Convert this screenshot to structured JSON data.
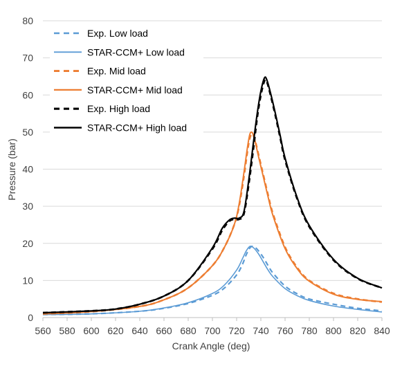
{
  "chart_data": {
    "type": "line",
    "title": "",
    "xlabel": "Crank Angle (deg)",
    "ylabel": "Pressure (bar)",
    "xlim": [
      560,
      840
    ],
    "ylim": [
      0,
      80
    ],
    "x_ticks": [
      "560",
      "580",
      "600",
      "620",
      "640",
      "660",
      "680",
      "700",
      "720",
      "740",
      "760",
      "780",
      "800",
      "820",
      "840"
    ],
    "y_ticks": [
      "0",
      "10",
      "20",
      "30",
      "40",
      "50",
      "60",
      "70",
      "80"
    ],
    "grid": "horizontal",
    "legend_position": "top-left",
    "series": [
      {
        "name": "Exp. Low load",
        "color": "#5b9bd5",
        "style": "dashed",
        "points": [
          [
            560,
            0.8
          ],
          [
            600,
            1.0
          ],
          [
            640,
            1.7
          ],
          [
            660,
            2.5
          ],
          [
            680,
            3.8
          ],
          [
            700,
            6.0
          ],
          [
            710,
            8.0
          ],
          [
            720,
            11.5
          ],
          [
            725,
            14.5
          ],
          [
            728,
            17.0
          ],
          [
            731,
            18.8
          ],
          [
            733,
            19.2
          ],
          [
            735,
            19.0
          ],
          [
            738,
            18.0
          ],
          [
            742,
            16.2
          ],
          [
            746,
            14.0
          ],
          [
            750,
            12.0
          ],
          [
            760,
            8.5
          ],
          [
            770,
            6.4
          ],
          [
            780,
            5.0
          ],
          [
            800,
            3.6
          ],
          [
            820,
            2.5
          ],
          [
            840,
            1.8
          ]
        ]
      },
      {
        "name": "STAR-CCM+ Low load",
        "color": "#5b9bd5",
        "style": "solid",
        "points": [
          [
            560,
            0.8
          ],
          [
            600,
            1.0
          ],
          [
            640,
            1.7
          ],
          [
            660,
            2.6
          ],
          [
            680,
            4.0
          ],
          [
            700,
            6.5
          ],
          [
            710,
            8.8
          ],
          [
            720,
            12.8
          ],
          [
            725,
            16.0
          ],
          [
            728,
            18.0
          ],
          [
            731,
            19.2
          ],
          [
            734,
            18.8
          ],
          [
            738,
            17.2
          ],
          [
            742,
            15.0
          ],
          [
            746,
            12.8
          ],
          [
            750,
            11.0
          ],
          [
            760,
            7.8
          ],
          [
            770,
            5.9
          ],
          [
            780,
            4.6
          ],
          [
            800,
            3.1
          ],
          [
            820,
            2.2
          ],
          [
            840,
            1.5
          ]
        ]
      },
      {
        "name": "Exp. Mid load",
        "color": "#ed7d31",
        "style": "dashed",
        "points": [
          [
            560,
            1.0
          ],
          [
            600,
            1.6
          ],
          [
            640,
            3.0
          ],
          [
            660,
            4.8
          ],
          [
            680,
            8.0
          ],
          [
            700,
            14.0
          ],
          [
            710,
            19.0
          ],
          [
            718,
            25.0
          ],
          [
            722,
            30.0
          ],
          [
            726,
            38.0
          ],
          [
            729,
            45.0
          ],
          [
            731,
            48.5
          ],
          [
            733,
            49.5
          ],
          [
            735,
            48.0
          ],
          [
            738,
            44.0
          ],
          [
            742,
            38.5
          ],
          [
            746,
            33.0
          ],
          [
            750,
            28.0
          ],
          [
            760,
            19.0
          ],
          [
            770,
            13.5
          ],
          [
            780,
            10.0
          ],
          [
            800,
            6.5
          ],
          [
            820,
            5.0
          ],
          [
            840,
            4.2
          ]
        ]
      },
      {
        "name": "STAR-CCM+ Mid load",
        "color": "#ed7d31",
        "style": "solid",
        "points": [
          [
            560,
            1.0
          ],
          [
            600,
            1.6
          ],
          [
            640,
            3.0
          ],
          [
            660,
            4.8
          ],
          [
            680,
            8.0
          ],
          [
            700,
            14.0
          ],
          [
            710,
            19.0
          ],
          [
            718,
            25.0
          ],
          [
            722,
            30.5
          ],
          [
            726,
            39.0
          ],
          [
            729,
            46.0
          ],
          [
            731,
            49.5
          ],
          [
            733,
            49.8
          ],
          [
            735,
            47.8
          ],
          [
            738,
            43.5
          ],
          [
            742,
            38.0
          ],
          [
            746,
            32.5
          ],
          [
            750,
            27.5
          ],
          [
            760,
            18.6
          ],
          [
            770,
            13.2
          ],
          [
            780,
            9.8
          ],
          [
            800,
            6.3
          ],
          [
            820,
            4.9
          ],
          [
            840,
            4.3
          ]
        ]
      },
      {
        "name": "Exp. High load",
        "color": "#000000",
        "style": "dashed",
        "points": [
          [
            560,
            1.3
          ],
          [
            600,
            1.8
          ],
          [
            620,
            2.3
          ],
          [
            640,
            3.6
          ],
          [
            660,
            5.8
          ],
          [
            680,
            10.0
          ],
          [
            700,
            18.5
          ],
          [
            708,
            23.5
          ],
          [
            714,
            26.0
          ],
          [
            718,
            26.5
          ],
          [
            722,
            26.5
          ],
          [
            726,
            28.0
          ],
          [
            730,
            36.0
          ],
          [
            734,
            46.0
          ],
          [
            737,
            54.0
          ],
          [
            740,
            60.0
          ],
          [
            743,
            63.8
          ],
          [
            745,
            63.5
          ],
          [
            748,
            60.0
          ],
          [
            752,
            54.5
          ],
          [
            756,
            48.5
          ],
          [
            760,
            42.5
          ],
          [
            770,
            32.0
          ],
          [
            780,
            24.5
          ],
          [
            800,
            15.5
          ],
          [
            820,
            10.5
          ],
          [
            840,
            8.0
          ]
        ]
      },
      {
        "name": "STAR-CCM+ High load",
        "color": "#000000",
        "style": "solid",
        "points": [
          [
            560,
            1.3
          ],
          [
            600,
            1.8
          ],
          [
            620,
            2.3
          ],
          [
            640,
            3.6
          ],
          [
            660,
            5.8
          ],
          [
            680,
            10.0
          ],
          [
            700,
            18.8
          ],
          [
            708,
            24.0
          ],
          [
            714,
            26.3
          ],
          [
            718,
            26.8
          ],
          [
            722,
            26.8
          ],
          [
            726,
            28.5
          ],
          [
            730,
            37.0
          ],
          [
            734,
            47.5
          ],
          [
            737,
            55.0
          ],
          [
            740,
            61.0
          ],
          [
            743,
            64.6
          ],
          [
            745,
            64.0
          ],
          [
            748,
            60.5
          ],
          [
            752,
            55.0
          ],
          [
            756,
            49.0
          ],
          [
            760,
            43.0
          ],
          [
            770,
            32.3
          ],
          [
            780,
            24.8
          ],
          [
            800,
            15.7
          ],
          [
            820,
            10.6
          ],
          [
            840,
            8.0
          ]
        ]
      }
    ]
  }
}
